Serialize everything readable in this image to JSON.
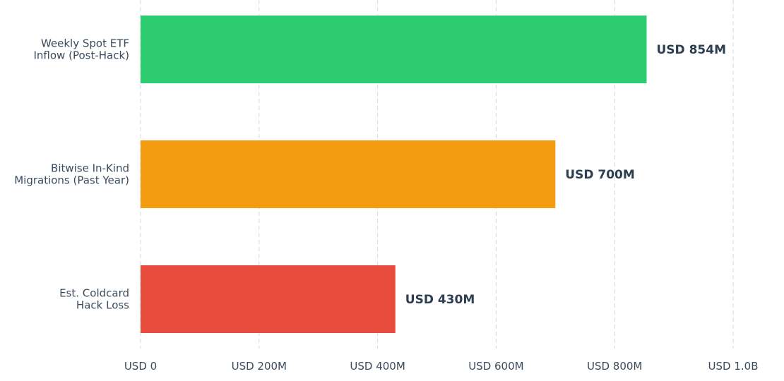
{
  "chart_data": {
    "type": "bar",
    "orientation": "horizontal",
    "categories": [
      [
        "Weekly Spot ETF",
        "Inflow (Post-Hack)"
      ],
      [
        "Bitwise In-Kind",
        "Migrations (Past Year)"
      ],
      [
        "Est. Coldcard",
        "Hack Loss"
      ]
    ],
    "values": [
      854,
      700,
      430
    ],
    "value_labels": [
      "USD 854M",
      "USD 700M",
      "USD 430M"
    ],
    "colors": [
      "#2ecc71",
      "#f39c12",
      "#e74c3c"
    ],
    "value_unit": "USD millions",
    "xlim": [
      0,
      1000
    ],
    "x_ticks": [
      0,
      200,
      400,
      600,
      800,
      1000
    ],
    "x_tick_labels": [
      "USD 0",
      "USD 200M",
      "USD 400M",
      "USD 600M",
      "USD 800M",
      "USD 1.0B"
    ],
    "title": "",
    "xlabel": "",
    "ylabel": "",
    "grid": "vertical-dashed",
    "legend": "none"
  }
}
